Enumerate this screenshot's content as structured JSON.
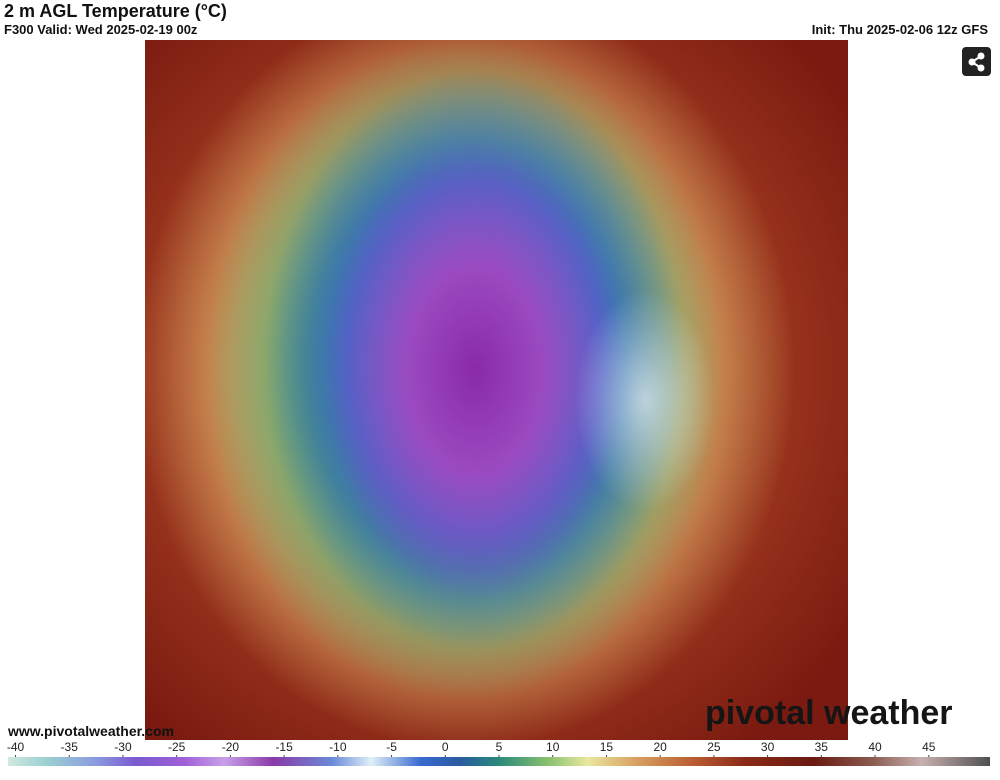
{
  "header": {
    "title": "2 m AGL Temperature (°C)",
    "valid": "F300 Valid: Wed 2025-02-19 00z",
    "init": "Init: Thu 2025-02-06 12z GFS"
  },
  "footer": {
    "website": "www.pivotalweather.com",
    "brand": "pivotal weather"
  },
  "colorbar": {
    "lim": [
      -40.7,
      50.7
    ],
    "ticks": [
      -40,
      -35,
      -30,
      -25,
      -20,
      -15,
      -10,
      -5,
      0,
      5,
      10,
      15,
      20,
      25,
      30,
      35,
      40,
      45
    ]
  }
}
